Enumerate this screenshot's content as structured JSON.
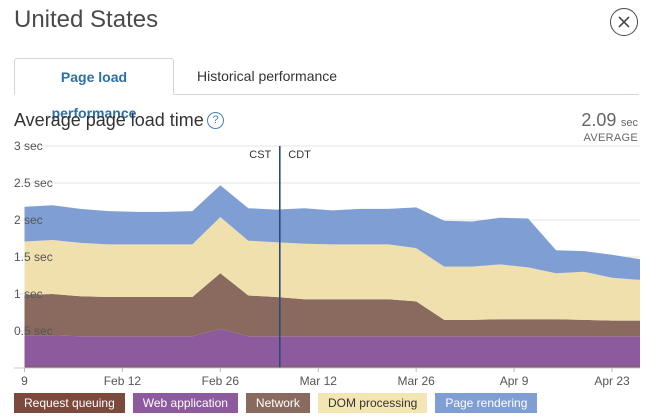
{
  "header": {
    "title": "United States"
  },
  "tabs": [
    {
      "label": "Page load performance",
      "active": true
    },
    {
      "label": "Historical performance",
      "active": false
    }
  ],
  "chart_header": {
    "title": "Average page load time",
    "average_value": "2.09",
    "average_unit": "sec",
    "average_label": "AVERAGE"
  },
  "chart_data": {
    "type": "area",
    "stacked": true,
    "title": "Average page load time",
    "ylim": [
      0,
      3
    ],
    "ytick_labels": [
      "0.5 sec",
      "1 sec",
      "1.5 sec",
      "2 sec",
      "2.5 sec",
      "3 sec"
    ],
    "yticks": [
      0.5,
      1,
      1.5,
      2,
      2.5,
      3
    ],
    "xtick_labels": [
      "9",
      "Feb 12",
      "Feb 26",
      "Mar 12",
      "Mar 26",
      "Apr 9",
      "Apr 23"
    ],
    "xticks": [
      "2013-01-29",
      "2013-02-12",
      "2013-02-26",
      "2013-03-12",
      "2013-03-26",
      "2013-04-09",
      "2013-04-23"
    ],
    "x": [
      "2013-01-29",
      "2013-02-02",
      "2013-02-06",
      "2013-02-10",
      "2013-02-14",
      "2013-02-18",
      "2013-02-22",
      "2013-02-26",
      "2013-03-02",
      "2013-03-06",
      "2013-03-10",
      "2013-03-14",
      "2013-03-18",
      "2013-03-22",
      "2013-03-26",
      "2013-03-30",
      "2013-04-03",
      "2013-04-07",
      "2013-04-11",
      "2013-04-15",
      "2013-04-19",
      "2013-04-23",
      "2013-04-27"
    ],
    "series": [
      {
        "name": "Request queuing",
        "color": "#7b5a4b",
        "values": [
          0.02,
          0.02,
          0.02,
          0.02,
          0.02,
          0.02,
          0.02,
          0.02,
          0.02,
          0.02,
          0.02,
          0.02,
          0.02,
          0.02,
          0.02,
          0.02,
          0.02,
          0.02,
          0.02,
          0.02,
          0.02,
          0.02,
          0.02
        ]
      },
      {
        "name": "Web application",
        "color": "#8e5a9e",
        "values": [
          0.42,
          0.42,
          0.41,
          0.41,
          0.41,
          0.41,
          0.41,
          0.51,
          0.41,
          0.41,
          0.41,
          0.41,
          0.41,
          0.41,
          0.41,
          0.41,
          0.41,
          0.41,
          0.41,
          0.41,
          0.41,
          0.41,
          0.41
        ]
      },
      {
        "name": "Network",
        "color": "#8a6a5e",
        "values": [
          0.55,
          0.56,
          0.54,
          0.53,
          0.53,
          0.53,
          0.53,
          0.75,
          0.55,
          0.53,
          0.5,
          0.5,
          0.5,
          0.5,
          0.47,
          0.22,
          0.22,
          0.23,
          0.23,
          0.23,
          0.22,
          0.21,
          0.21
        ]
      },
      {
        "name": "DOM processing",
        "color": "#efe0ad",
        "values": [
          0.72,
          0.73,
          0.72,
          0.71,
          0.71,
          0.71,
          0.71,
          0.76,
          0.74,
          0.74,
          0.75,
          0.74,
          0.74,
          0.74,
          0.72,
          0.72,
          0.72,
          0.74,
          0.7,
          0.62,
          0.65,
          0.58,
          0.55
        ]
      },
      {
        "name": "Page rendering",
        "color": "#7f9fd4",
        "values": [
          0.47,
          0.47,
          0.46,
          0.45,
          0.44,
          0.44,
          0.45,
          0.43,
          0.44,
          0.44,
          0.48,
          0.46,
          0.48,
          0.48,
          0.55,
          0.62,
          0.61,
          0.63,
          0.66,
          0.31,
          0.28,
          0.31,
          0.28
        ]
      }
    ],
    "events": [
      {
        "label": "CST",
        "date": "2013-03-06"
      },
      {
        "label": "CDT",
        "date": "2013-03-07"
      }
    ],
    "legend_position": "bottom"
  },
  "legend": [
    {
      "label": "Request queuing",
      "bg": "#7b4a3c",
      "fg": "#ffffff"
    },
    {
      "label": "Web application",
      "bg": "#8e5a9e",
      "fg": "#ffffff"
    },
    {
      "label": "Network",
      "bg": "#8a6a5e",
      "fg": "#ffffff"
    },
    {
      "label": "DOM processing",
      "bg": "#f3e6b3",
      "fg": "#333333"
    },
    {
      "label": "Page rendering",
      "bg": "#7f9fd4",
      "fg": "#ffffff"
    }
  ]
}
